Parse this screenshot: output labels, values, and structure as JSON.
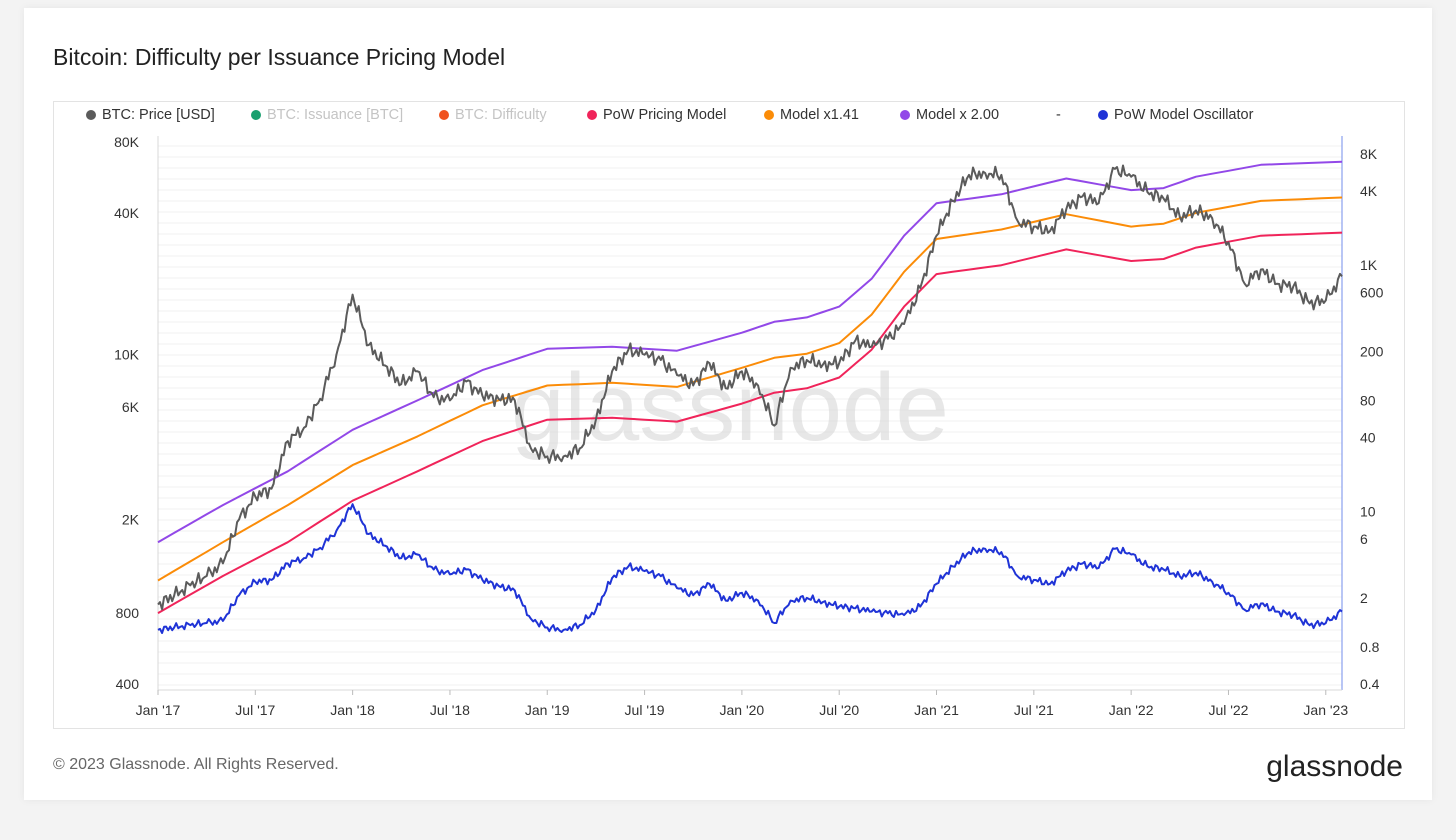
{
  "title": "Bitcoin: Difficulty per Issuance Pricing Model",
  "legend": [
    {
      "label": "BTC: Price [USD]",
      "color": "#5b5b5b",
      "active": true
    },
    {
      "label": "BTC: Issuance [BTC]",
      "color": "#1aa06f",
      "active": false
    },
    {
      "label": "BTC: Difficulty",
      "color": "#f0521e",
      "active": false
    },
    {
      "label": "PoW Pricing Model",
      "color": "#f0245a",
      "active": true
    },
    {
      "label": "Model x1.41",
      "color": "#fb8c08",
      "active": true
    },
    {
      "label": "Model x 2.00",
      "color": "#9248e8",
      "active": true
    },
    {
      "label": "-",
      "color": "",
      "active": true
    },
    {
      "label": "PoW Model Oscillator",
      "color": "#1f33d6",
      "active": true
    }
  ],
  "watermark": "glassnode",
  "footer": {
    "copyright": "© 2023 Glassnode. All Rights Reserved.",
    "logo": "glassnode"
  },
  "chart_data": {
    "type": "line",
    "title": "Bitcoin: Difficulty per Issuance Pricing Model",
    "x_ticks": [
      "Jan '17",
      "Jul '17",
      "Jan '18",
      "Jul '18",
      "Jan '19",
      "Jul '19",
      "Jan '20",
      "Jul '20",
      "Jan '21",
      "Jul '21",
      "Jan '22",
      "Jul '22",
      "Jan '23"
    ],
    "x_range": [
      0,
      73
    ],
    "y_left": {
      "scale": "log",
      "range": [
        400,
        80000
      ],
      "ticks": [
        {
          "v": 80000,
          "label": "80K"
        },
        {
          "v": 40000,
          "label": "40K"
        },
        {
          "v": 10000,
          "label": "10K"
        },
        {
          "v": 6000,
          "label": "6K"
        },
        {
          "v": 2000,
          "label": "2K"
        },
        {
          "v": 800,
          "label": "800"
        },
        {
          "v": 400,
          "label": "400"
        }
      ]
    },
    "y_right": {
      "scale": "log",
      "range": [
        0.4,
        10000
      ],
      "ticks": [
        {
          "v": 8000,
          "label": "8K"
        },
        {
          "v": 4000,
          "label": "4K"
        },
        {
          "v": 1000,
          "label": "1K"
        },
        {
          "v": 600,
          "label": "600"
        },
        {
          "v": 200,
          "label": "200"
        },
        {
          "v": 80,
          "label": "80"
        },
        {
          "v": 40,
          "label": "40"
        },
        {
          "v": 10,
          "label": "10"
        },
        {
          "v": 6,
          "label": "6"
        },
        {
          "v": 2,
          "label": "2"
        },
        {
          "v": 0.8,
          "label": "0.8"
        },
        {
          "v": 0.4,
          "label": "0.4"
        }
      ]
    },
    "series": [
      {
        "name": "BTC: Price [USD]",
        "axis": "left",
        "color": "#5b5b5b",
        "x": [
          0,
          1,
          2,
          3,
          4,
          5,
          6,
          7,
          8,
          9,
          10,
          11,
          12,
          13,
          14,
          15,
          16,
          17,
          18,
          19,
          20,
          21,
          22,
          23,
          24,
          25,
          26,
          27,
          28,
          29,
          30,
          31,
          32,
          33,
          34,
          35,
          36,
          37,
          38,
          39,
          40,
          41,
          42,
          43,
          44,
          45,
          46,
          47,
          48,
          49,
          50,
          51,
          52,
          53,
          54,
          55,
          56,
          57,
          58,
          59,
          60,
          61,
          62,
          63,
          64,
          65,
          66,
          67,
          68,
          69,
          70,
          71,
          72,
          73
        ],
        "values": [
          870,
          950,
          1050,
          1150,
          1300,
          2000,
          2500,
          2700,
          4300,
          4900,
          6500,
          10000,
          18000,
          11000,
          9000,
          7500,
          8500,
          6600,
          6400,
          7700,
          6700,
          6500,
          6400,
          4000,
          3700,
          3700,
          4000,
          5300,
          8500,
          10500,
          10000,
          9500,
          8200,
          7400,
          9200,
          7200,
          8500,
          7400,
          5000,
          8800,
          9500,
          9100,
          9200,
          11500,
          10800,
          11700,
          13500,
          19200,
          32000,
          45000,
          58000,
          59000,
          58000,
          37000,
          35000,
          33500,
          41500,
          47000,
          44000,
          61500,
          57000,
          49000,
          46000,
          38500,
          41000,
          38000,
          30000,
          20000,
          23000,
          20000,
          19500,
          16500,
          17000,
          21500
        ]
      },
      {
        "name": "PoW Pricing Model",
        "axis": "left",
        "color": "#f0245a",
        "x": [
          0,
          4,
          8,
          12,
          16,
          20,
          24,
          28,
          32,
          36,
          38,
          40,
          42,
          44,
          46,
          48,
          52,
          56,
          60,
          62,
          64,
          68,
          73
        ],
        "values": [
          800,
          1150,
          1600,
          2400,
          3200,
          4300,
          5300,
          5400,
          5200,
          6200,
          6900,
          7200,
          8000,
          10500,
          16000,
          22000,
          24000,
          28000,
          25000,
          25500,
          28500,
          32000,
          33000
        ]
      },
      {
        "name": "Model x1.41",
        "axis": "left",
        "color": "#fb8c08",
        "x": [
          0,
          4,
          8,
          12,
          16,
          20,
          24,
          28,
          32,
          36,
          38,
          40,
          42,
          44,
          46,
          48,
          52,
          56,
          60,
          62,
          64,
          68,
          73
        ],
        "values": [
          1100,
          1600,
          2300,
          3400,
          4500,
          6100,
          7400,
          7600,
          7300,
          8800,
          9700,
          10100,
          11200,
          14800,
          22500,
          31000,
          34000,
          39500,
          35000,
          36000,
          40000,
          45000,
          46500
        ]
      },
      {
        "name": "Model x 2.00",
        "axis": "left",
        "color": "#9248e8",
        "x": [
          0,
          4,
          8,
          12,
          16,
          20,
          24,
          28,
          32,
          36,
          38,
          40,
          42,
          44,
          46,
          48,
          52,
          56,
          60,
          62,
          64,
          68,
          73
        ],
        "values": [
          1600,
          2300,
          3200,
          4800,
          6400,
          8600,
          10600,
          10800,
          10400,
          12400,
          13800,
          14400,
          16000,
          21000,
          32000,
          44000,
          48000,
          56000,
          50000,
          51000,
          57000,
          64000,
          66000
        ]
      },
      {
        "name": "PoW Model Oscillator",
        "axis": "right",
        "color": "#1f33d6",
        "x": [
          0,
          1,
          2,
          3,
          4,
          5,
          6,
          7,
          8,
          9,
          10,
          11,
          12,
          13,
          14,
          15,
          16,
          17,
          18,
          19,
          20,
          21,
          22,
          23,
          24,
          25,
          26,
          27,
          28,
          29,
          30,
          31,
          32,
          33,
          34,
          35,
          36,
          37,
          38,
          39,
          40,
          41,
          42,
          43,
          44,
          45,
          46,
          47,
          48,
          49,
          50,
          51,
          52,
          53,
          54,
          55,
          56,
          57,
          58,
          59,
          60,
          61,
          62,
          63,
          64,
          65,
          66,
          67,
          68,
          69,
          70,
          71,
          72,
          73
        ],
        "values": [
          1.1,
          1.15,
          1.2,
          1.25,
          1.3,
          2.1,
          2.7,
          2.8,
          3.8,
          4.2,
          5.1,
          7.0,
          11.5,
          6.6,
          5.3,
          4.2,
          4.5,
          3.4,
          3.1,
          3.4,
          2.8,
          2.5,
          2.3,
          1.35,
          1.15,
          1.1,
          1.2,
          1.6,
          2.9,
          3.6,
          3.3,
          3.0,
          2.4,
          2.1,
          2.6,
          1.9,
          2.2,
          1.9,
          1.25,
          1.9,
          2.0,
          1.85,
          1.7,
          1.65,
          1.55,
          1.5,
          1.45,
          1.7,
          2.6,
          3.6,
          4.7,
          5.0,
          4.7,
          3.0,
          2.8,
          2.6,
          3.3,
          3.8,
          3.5,
          5.0,
          4.5,
          3.6,
          3.4,
          3.0,
          3.2,
          2.7,
          2.2,
          1.6,
          1.8,
          1.55,
          1.45,
          1.2,
          1.25,
          1.55
        ]
      }
    ]
  }
}
